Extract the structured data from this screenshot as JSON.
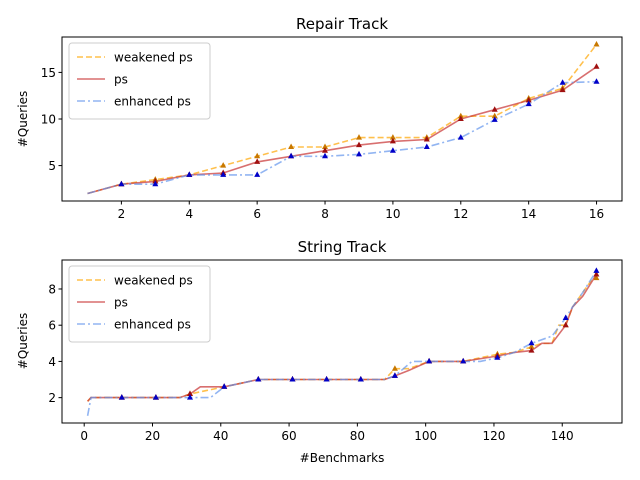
{
  "chart_data": [
    {
      "type": "line",
      "title": "Repair Track",
      "xlabel": "",
      "ylabel": "#Queries",
      "xlim": [
        0.25,
        16.75
      ],
      "ylim": [
        1.2,
        18.8
      ],
      "xticks": [
        2,
        4,
        6,
        8,
        10,
        12,
        14,
        16
      ],
      "yticks": [
        5,
        10,
        15
      ],
      "grid": false,
      "legend_position": "upper-left",
      "series": [
        {
          "name": "weakened ps",
          "color": "#FFA500",
          "linestyle": "dashed",
          "x": [
            1,
            2,
            3,
            4,
            5,
            6,
            7,
            8,
            9,
            10,
            11,
            12,
            13,
            14,
            15,
            16
          ],
          "y": [
            2,
            3,
            3.5,
            4,
            5,
            6,
            7,
            7,
            8,
            8,
            8,
            10.3,
            10.3,
            12.2,
            13.3,
            18
          ]
        },
        {
          "name": "ps",
          "color": "#C83232",
          "linestyle": "solid",
          "x": [
            1,
            2,
            3,
            4,
            5,
            6,
            7,
            8,
            9,
            10,
            11,
            12,
            13,
            14,
            15,
            16
          ],
          "y": [
            2,
            3,
            3.3,
            4,
            4.2,
            5.4,
            6,
            6.6,
            7.2,
            7.6,
            7.8,
            10,
            11,
            12,
            13.1,
            15.6
          ]
        },
        {
          "name": "enhanced ps",
          "color": "#6495ED",
          "linestyle": "dashdot",
          "x": [
            1,
            2,
            3,
            4,
            5,
            6,
            7,
            8,
            9,
            10,
            11,
            12,
            13,
            14,
            15,
            16
          ],
          "y": [
            2,
            3,
            3,
            4,
            4,
            4,
            6,
            6,
            6.2,
            6.6,
            7,
            8,
            9.9,
            11.6,
            13.9,
            14
          ]
        }
      ]
    },
    {
      "type": "line",
      "title": "String Track",
      "xlabel": "#Benchmarks",
      "ylabel": "#Queries",
      "xlim": [
        -6.5,
        157.5
      ],
      "ylim": [
        0.6,
        9.6
      ],
      "xticks": [
        0,
        20,
        40,
        60,
        80,
        100,
        120,
        140
      ],
      "yticks": [
        2,
        4,
        6,
        8
      ],
      "grid": false,
      "legend_position": "upper-left",
      "series": [
        {
          "name": "weakened ps",
          "color": "#FFA500",
          "linestyle": "dashed",
          "x": [
            1,
            2,
            11,
            21,
            28,
            31,
            41,
            46,
            51,
            61,
            71,
            81,
            88,
            91,
            95,
            101,
            111,
            121,
            126,
            131,
            134,
            137,
            139,
            141,
            143,
            146,
            149,
            150
          ],
          "y": [
            1.8,
            2,
            2,
            2,
            2,
            2.2,
            2.6,
            2.8,
            3,
            3,
            3,
            3,
            3,
            3.6,
            3.6,
            4,
            4,
            4.4,
            4.5,
            4.8,
            5,
            5,
            6,
            6,
            7,
            7.8,
            8.6,
            8.6
          ]
        },
        {
          "name": "ps",
          "color": "#C83232",
          "linestyle": "solid",
          "x": [
            1,
            2,
            11,
            21,
            28,
            31,
            34,
            41,
            46,
            51,
            61,
            71,
            81,
            88,
            91,
            95,
            101,
            111,
            121,
            126,
            131,
            134,
            137,
            141,
            143,
            146,
            150
          ],
          "y": [
            1.8,
            2,
            2,
            2,
            2,
            2.2,
            2.6,
            2.6,
            2.8,
            3,
            3,
            3,
            3,
            3,
            3.2,
            3.5,
            4,
            4,
            4.3,
            4.5,
            4.6,
            5,
            5,
            6,
            7,
            7.6,
            8.8
          ]
        },
        {
          "name": "enhanced ps",
          "color": "#6495ED",
          "linestyle": "dashdot",
          "x": [
            1,
            2,
            11,
            21,
            31,
            37,
            41,
            46,
            51,
            61,
            71,
            81,
            88,
            91,
            96,
            101,
            111,
            116,
            121,
            126,
            131,
            137,
            141,
            143,
            146,
            150
          ],
          "y": [
            1,
            2,
            2,
            2,
            2,
            2,
            2.6,
            2.8,
            3,
            3,
            3,
            3,
            3,
            3.2,
            4,
            4,
            4,
            4,
            4.2,
            4.5,
            5,
            5.4,
            6.4,
            7,
            7.8,
            9
          ]
        }
      ]
    }
  ]
}
